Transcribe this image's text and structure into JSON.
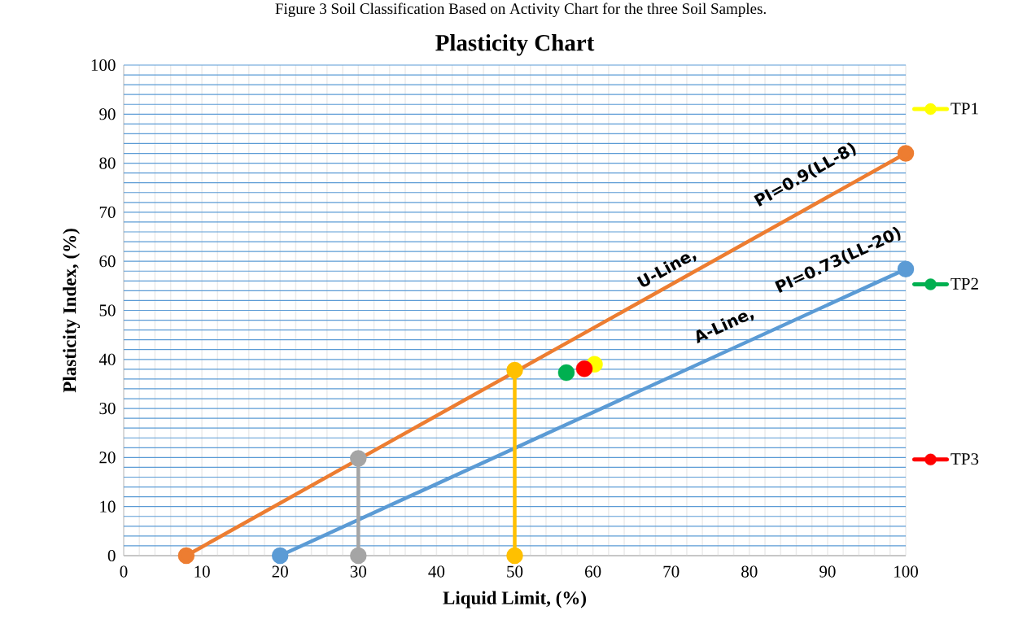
{
  "chart_data": {
    "type": "line",
    "title": "Plasticity Chart",
    "xlabel": "Liquid Limit, (%)",
    "ylabel": "Plasticity Index, (%)",
    "annotations": [
      "Figure 3 Soil Classification Based on Activity Chart for the three Soil Samples.",
      "U-Line,",
      "PI=0.9(LL-8)",
      "A-Line,",
      "PI=0.73(LL-20)"
    ],
    "xlim": [
      0,
      100
    ],
    "ylim": [
      0,
      100
    ],
    "xticks": [
      0,
      10,
      20,
      30,
      40,
      50,
      60,
      70,
      80,
      90,
      100
    ],
    "yticks": [
      0,
      10,
      20,
      30,
      40,
      50,
      60,
      70,
      80,
      90,
      100
    ],
    "grid": true,
    "legend": "right",
    "marker": "circle",
    "line_style": "solid",
    "series": [
      {
        "color": "#ed7d31",
        "x": [
          8,
          100
        ],
        "values": [
          0,
          82
        ]
      },
      {
        "color": "#5b9bd5",
        "x": [
          20,
          100
        ],
        "values": [
          0,
          58.4
        ]
      },
      {
        "color": "#a5a5a5",
        "x": [
          30,
          30
        ],
        "values": [
          0,
          19.8
        ]
      },
      {
        "color": "#ffc000",
        "x": [
          50,
          50
        ],
        "values": [
          0,
          37.8
        ]
      },
      {
        "type": "scatter",
        "name": "TP1",
        "color": "#ffff00",
        "x": [
          60.2
        ],
        "values": [
          39
        ]
      },
      {
        "type": "scatter",
        "name": "TP2",
        "color": "#00b050",
        "x": [
          56.6
        ],
        "values": [
          37.3
        ]
      },
      {
        "type": "scatter",
        "name": "TP3",
        "color": "#ff0000",
        "x": [
          58.9
        ],
        "values": [
          38.1
        ]
      }
    ]
  }
}
